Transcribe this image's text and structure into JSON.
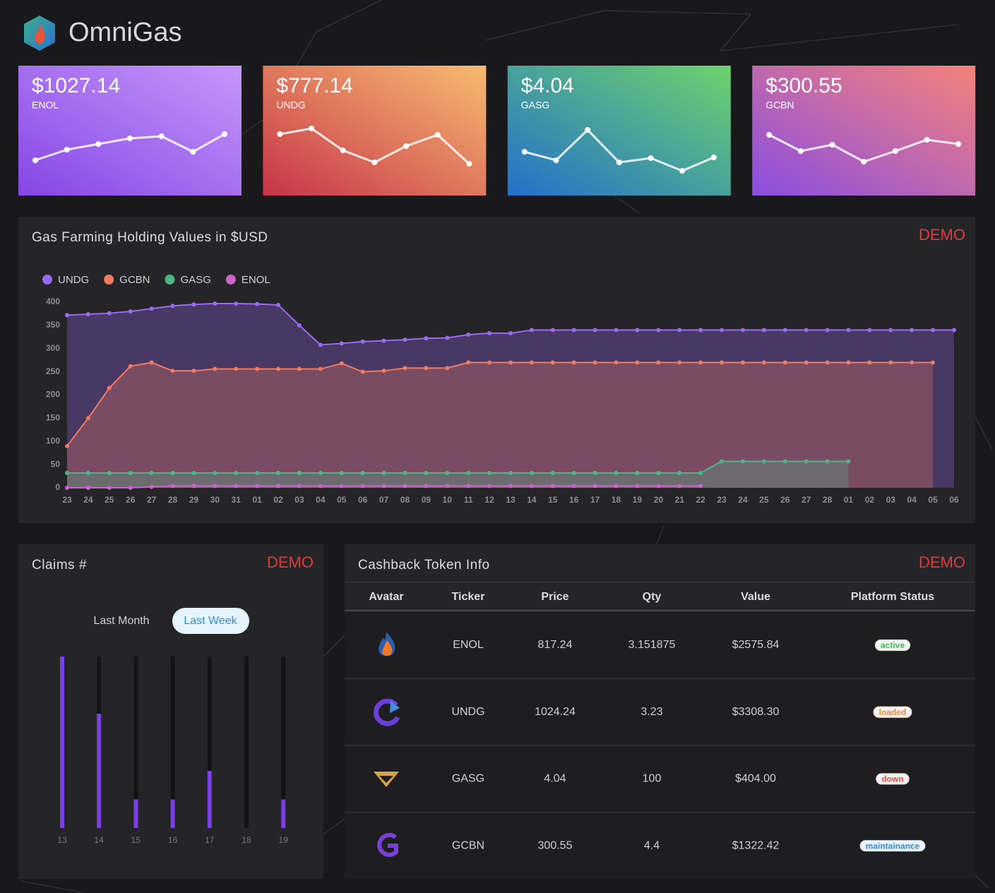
{
  "header": {
    "title": "OmniGas"
  },
  "cards": [
    {
      "value": "$1027.14",
      "ticker": "ENOL",
      "values": [
        23,
        38,
        46,
        54,
        57,
        35,
        60
      ]
    },
    {
      "value": "$777.14",
      "ticker": "UNDG",
      "values": [
        60,
        68,
        37,
        20,
        43,
        59,
        18
      ]
    },
    {
      "value": "$4.04",
      "ticker": "GASG",
      "values": [
        35,
        23,
        66,
        20,
        26,
        8,
        27
      ]
    },
    {
      "value": "$300.55",
      "ticker": "GCBN",
      "values": [
        59,
        36,
        45,
        21,
        36,
        52,
        46
      ]
    }
  ],
  "chart_data": [
    {
      "type": "line",
      "title": "Gas Farming Holding Values in $USD",
      "badge": "DEMO",
      "categories": [
        "23",
        "24",
        "25",
        "26",
        "27",
        "28",
        "29",
        "30",
        "31",
        "01",
        "02",
        "03",
        "04",
        "05",
        "06",
        "07",
        "08",
        "09",
        "10",
        "11",
        "12",
        "13",
        "14",
        "15",
        "16",
        "17",
        "18",
        "19",
        "20",
        "21",
        "22",
        "23",
        "24",
        "25",
        "26",
        "27",
        "28",
        "01",
        "02",
        "03",
        "04",
        "05",
        "06"
      ],
      "series": [
        {
          "name": "UNDG",
          "color": "#9a6bf2",
          "values": [
            372,
            374,
            376,
            380,
            386,
            392,
            395,
            397,
            397,
            396,
            394,
            350,
            308,
            311,
            315,
            317,
            319,
            322,
            323,
            330,
            333,
            333,
            340,
            340,
            340,
            340,
            340,
            340,
            340,
            340,
            340,
            340,
            340,
            340,
            340,
            340,
            340,
            340,
            340,
            340,
            340,
            340,
            340
          ]
        },
        {
          "name": "GCBN",
          "color": "#ee7b62",
          "values": [
            90,
            150,
            215,
            262,
            270,
            252,
            252,
            256,
            256,
            256,
            256,
            256,
            256,
            268,
            250,
            252,
            258,
            258,
            258,
            270,
            270,
            270,
            270,
            270,
            270,
            270,
            270,
            270,
            270,
            270,
            270,
            270,
            270,
            270,
            270,
            270,
            270,
            270,
            270,
            270,
            270,
            270,
            null
          ]
        },
        {
          "name": "GASG",
          "color": "#4fb38a",
          "values": [
            32,
            32,
            32,
            32,
            32,
            32,
            32,
            32,
            32,
            32,
            32,
            32,
            32,
            32,
            32,
            32,
            32,
            32,
            32,
            32,
            32,
            32,
            32,
            32,
            32,
            32,
            32,
            32,
            32,
            32,
            32,
            57,
            57,
            57,
            57,
            57,
            57,
            57,
            null,
            null,
            null,
            null,
            null
          ]
        },
        {
          "name": "ENOL",
          "color": "#c964c8",
          "values": [
            0,
            0,
            0,
            0,
            2,
            4,
            4,
            4,
            4,
            4,
            4,
            4,
            4,
            4,
            4,
            4,
            4,
            4,
            4,
            4,
            4,
            4,
            4,
            4,
            4,
            4,
            4,
            4,
            4,
            4,
            4,
            null,
            null,
            null,
            null,
            null,
            null,
            null,
            null,
            null,
            null,
            null,
            null
          ]
        }
      ],
      "ylim": [
        0,
        400
      ],
      "yticks": [
        0,
        50,
        100,
        150,
        200,
        250,
        300,
        350,
        400
      ],
      "grid": false,
      "legend": "top-left"
    },
    {
      "type": "bar",
      "title": "Claims #",
      "badge": "DEMO",
      "buttons": [
        "Last Month",
        "Last Week"
      ],
      "active_button": 1,
      "categories": [
        "13",
        "14",
        "15",
        "16",
        "17",
        "18",
        "19"
      ],
      "values": [
        6,
        4,
        1,
        1,
        2,
        0,
        1
      ],
      "ylim": [
        0,
        6
      ],
      "color": "#7b3fe4"
    }
  ],
  "table": {
    "title": "Cashback Token Info",
    "badge": "DEMO",
    "columns": [
      "Avatar",
      "Ticker",
      "Price",
      "Qty",
      "Value",
      "Platform Status"
    ],
    "rows": [
      {
        "ticker": "ENOL",
        "price": "817.24",
        "qty": "3.151875",
        "value": "$2575.84",
        "status": "active",
        "status_color": "#3fbf4f"
      },
      {
        "ticker": "UNDG",
        "price": "1024.24",
        "qty": "3.23",
        "value": "$3308.30",
        "status": "loaded",
        "status_color": "#f08a3c"
      },
      {
        "ticker": "GASG",
        "price": "4.04",
        "qty": "100",
        "value": "$404.00",
        "status": "down",
        "status_color": "#e0543c"
      },
      {
        "ticker": "GCBN",
        "price": "300.55",
        "qty": "4.4",
        "value": "$1322.42",
        "status": "maintainance",
        "status_color": "#2a8fd8"
      }
    ]
  }
}
